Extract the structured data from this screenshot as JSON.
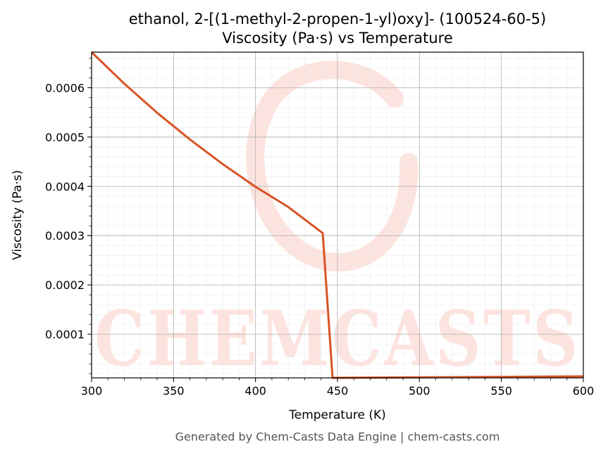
{
  "chart_data": {
    "type": "line",
    "title": "ethanol, 2-[(1-methyl-2-propen-1-yl)oxy]- (100524-60-5)",
    "subtitle": "Viscosity (Pa·s) vs Temperature",
    "xlabel": "Temperature (K)",
    "ylabel": "Viscosity (Pa·s)",
    "xlim": [
      300,
      600
    ],
    "ylim": [
      1.15e-05,
      0.000672
    ],
    "x_ticks": [
      300,
      350,
      400,
      450,
      500,
      550,
      600
    ],
    "x_tick_labels": [
      "300",
      "350",
      "400",
      "450",
      "500",
      "550",
      "600"
    ],
    "y_ticks": [
      0.0001,
      0.0002,
      0.0003,
      0.0004,
      0.0005,
      0.0006
    ],
    "y_tick_labels": [
      "0.0001",
      "0.0002",
      "0.0003",
      "0.0004",
      "0.0005",
      "0.0006"
    ],
    "grid": true,
    "minor_grid": true,
    "legend": "none",
    "series": [
      {
        "color": "#d95325",
        "x": [
          300,
          320,
          340,
          360,
          380,
          400,
          420,
          441,
          447,
          500,
          550,
          600
        ],
        "y": [
          0.000672,
          0.000608,
          0.000549,
          0.000495,
          0.000445,
          0.000399,
          0.000358,
          0.000305,
          1.15e-05,
          1.25e-05,
          1.35e-05,
          1.45e-05
        ]
      }
    ]
  },
  "watermark": {
    "text": "CHEMCASTS",
    "color": "#fde3de"
  },
  "footer": "Generated by Chem-Casts Data Engine | chem-casts.com"
}
